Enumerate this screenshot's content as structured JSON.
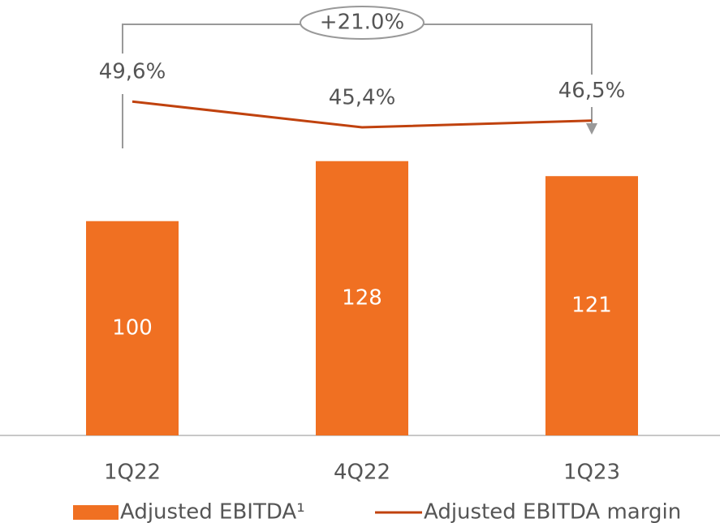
{
  "chart_data": {
    "type": "bar_line",
    "categories": [
      "1Q22",
      "4Q22",
      "1Q23"
    ],
    "series": [
      {
        "name": "Adjusted EBITDA¹",
        "type": "bar",
        "color": "#f07022",
        "values": [
          100,
          128,
          121
        ]
      },
      {
        "name": "Adjusted EBITDA margin",
        "type": "line",
        "axis": "y2",
        "color": "#c0420e",
        "values": [
          49.6,
          45.4,
          46.5
        ],
        "value_labels": [
          "49,6%",
          "45,4%",
          "46,5%"
        ]
      }
    ],
    "ylim": [
      0,
      140
    ],
    "y2lim": [
      40,
      52
    ],
    "annotation": "+21.0%",
    "legend": "bottom"
  }
}
